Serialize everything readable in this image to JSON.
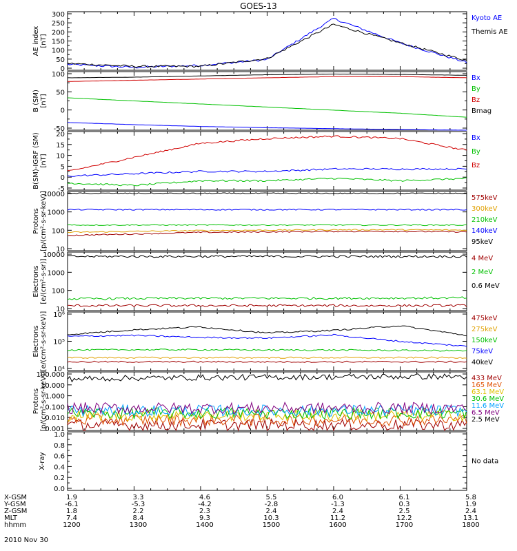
{
  "title": "GOES-13",
  "panels": [
    {
      "id": "ae",
      "ylabel": [
        "AE index",
        "[nT]"
      ],
      "yticks": [
        "300",
        "250",
        "200",
        "150",
        "100",
        "50",
        "0"
      ],
      "legend": [
        {
          "text": "Kyoto AE",
          "color": "#0000ff"
        },
        {
          "text": "Themis AE",
          "color": "#000000"
        }
      ]
    },
    {
      "id": "bsm",
      "ylabel": [
        "B (SM)",
        "[nT]"
      ],
      "yticks": [
        "100",
        "50",
        "0",
        "-50"
      ],
      "legend": [
        {
          "text": "Bx",
          "color": "#0000ff"
        },
        {
          "text": "By",
          "color": "#00c000"
        },
        {
          "text": "Bz",
          "color": "#d00000"
        },
        {
          "text": "Bmag",
          "color": "#000000"
        }
      ]
    },
    {
      "id": "bigrf",
      "ylabel": [
        "B(SM)-IGRF (SM)",
        "[nT]"
      ],
      "yticks": [
        "20",
        "15",
        "10",
        "5",
        "0",
        "-5"
      ],
      "legend": [
        {
          "text": "Bx",
          "color": "#0000ff"
        },
        {
          "text": "By",
          "color": "#00c000"
        },
        {
          "text": "Bz",
          "color": "#d00000"
        }
      ]
    },
    {
      "id": "protons1",
      "ylabel": [
        "Protons",
        "[p/(cm²-s-sr-keV)]"
      ],
      "yticks": [
        "10000",
        "1000",
        "100",
        "10"
      ],
      "legend": [
        {
          "text": "575keV",
          "color": "#a00000"
        },
        {
          "text": "300keV",
          "color": "#e0a000"
        },
        {
          "text": "210keV",
          "color": "#00c000"
        },
        {
          "text": "140keV",
          "color": "#0000ff"
        },
        {
          "text": "95keV",
          "color": "#000000"
        }
      ]
    },
    {
      "id": "electrons1",
      "ylabel": [
        "Electrons",
        "[e/(cm²-s-sr)]"
      ],
      "yticks": [
        "10000",
        "1000",
        "100",
        "10"
      ],
      "legend": [
        {
          "text": "4 MeV",
          "color": "#a00000"
        },
        {
          "text": "2 MeV",
          "color": "#00c000"
        },
        {
          "text": "0.6 MeV",
          "color": "#000000"
        }
      ]
    },
    {
      "id": "electrons2",
      "ylabel": [
        "Electrons",
        "[e/(cm²-s-sr-keV)]"
      ],
      "yticks": [
        "10⁶",
        "10⁵",
        "10⁴"
      ],
      "legend": [
        {
          "text": "475keV",
          "color": "#a00000"
        },
        {
          "text": "275keV",
          "color": "#e0a000"
        },
        {
          "text": "150keV",
          "color": "#00c000"
        },
        {
          "text": "75keV",
          "color": "#0000ff"
        },
        {
          "text": "40keV",
          "color": "#000000"
        }
      ]
    },
    {
      "id": "protons2",
      "ylabel": [
        "Protons",
        "[p/(cm²-s-sr-keV)]"
      ],
      "yticks": [
        "100.000",
        "10.000",
        "1.000",
        "0.100",
        "0.010",
        "0.001"
      ],
      "legend": [
        {
          "text": "433 MeV",
          "color": "#a00000"
        },
        {
          "text": "165 MeV",
          "color": "#e05000"
        },
        {
          "text": "63.1 MeV",
          "color": "#e0c000"
        },
        {
          "text": "30.6 MeV",
          "color": "#00c000"
        },
        {
          "text": "11.6 MeV",
          "color": "#00a0ff"
        },
        {
          "text": "6.5 MeV",
          "color": "#800080"
        },
        {
          "text": "2.5 MeV",
          "color": "#000000"
        }
      ]
    },
    {
      "id": "xray",
      "ylabel": [
        "X-ray"
      ],
      "yticks": [
        "1.0",
        "0.8",
        "0.6",
        "0.4",
        "0.2",
        "0.0"
      ],
      "legend": [
        {
          "text": "No data",
          "color": "#000000"
        }
      ]
    }
  ],
  "footer": {
    "rows": [
      {
        "label": "X-GSM",
        "values": [
          "1.9",
          "3.3",
          "4.6",
          "5.5",
          "6.0",
          "6.1",
          "5.8"
        ]
      },
      {
        "label": "Y-GSM",
        "values": [
          "-6.1",
          "-5.3",
          "-4.2",
          "-2.8",
          "-1.3",
          "0.3",
          "1.9"
        ]
      },
      {
        "label": "Z-GSM",
        "values": [
          "1.8",
          "2.2",
          "2.3",
          "2.4",
          "2.4",
          "2.5",
          "2.4"
        ]
      },
      {
        "label": "MLT",
        "values": [
          "7.4",
          "8.4",
          "9.3",
          "10.3",
          "11.2",
          "12.2",
          "13.1"
        ]
      },
      {
        "label": "hhmm",
        "values": [
          "1200",
          "1300",
          "1400",
          "1500",
          "1600",
          "1700",
          "1800"
        ]
      }
    ],
    "date": "2010 Nov 30"
  },
  "chart_data": [
    {
      "type": "line",
      "title": "GOES-13",
      "ylabel": "AE index [nT]",
      "ylim": [
        0,
        300
      ],
      "x": [
        "1200",
        "1300",
        "1400",
        "1500",
        "1600",
        "1700",
        "1800"
      ],
      "series": [
        {
          "name": "Kyoto AE",
          "color": "#0000ff",
          "values": [
            30,
            15,
            25,
            55,
            265,
            140,
            40
          ]
        },
        {
          "name": "Themis AE",
          "color": "#000000",
          "values": [
            35,
            20,
            20,
            60,
            235,
            140,
            50
          ]
        }
      ]
    },
    {
      "type": "line",
      "ylabel": "B (SM) [nT]",
      "ylim": [
        -60,
        130
      ],
      "x": [
        "1200",
        "1300",
        "1400",
        "1500",
        "1600",
        "1700",
        "1800"
      ],
      "series": [
        {
          "name": "Bx",
          "color": "#0000ff",
          "values": [
            -35,
            -42,
            -48,
            -52,
            -55,
            -58,
            -60
          ]
        },
        {
          "name": "By",
          "color": "#00c000",
          "values": [
            45,
            35,
            25,
            15,
            5,
            -5,
            -18
          ]
        },
        {
          "name": "Bz",
          "color": "#d00000",
          "values": [
            98,
            102,
            106,
            110,
            114,
            114,
            110
          ]
        },
        {
          "name": "Bmag",
          "color": "#000000",
          "values": [
            110,
            112,
            116,
            120,
            122,
            121,
            118
          ]
        }
      ]
    },
    {
      "type": "line",
      "ylabel": "B(SM)-IGRF (SM) [nT]",
      "ylim": [
        -5,
        20
      ],
      "x": [
        "1200",
        "1300",
        "1400",
        "1500",
        "1600",
        "1700",
        "1800"
      ],
      "series": [
        {
          "name": "Bx",
          "color": "#0000ff",
          "values": [
            1,
            2,
            3,
            3,
            4,
            4,
            4
          ]
        },
        {
          "name": "By",
          "color": "#00c000",
          "values": [
            -2,
            -3,
            -1,
            -1,
            0,
            -1,
            0
          ]
        },
        {
          "name": "Bz",
          "color": "#d00000",
          "values": [
            3,
            9,
            15,
            17,
            18,
            17,
            12
          ]
        }
      ]
    },
    {
      "type": "line",
      "ylabel": "Protons [p/(cm²-s-sr-keV)]",
      "ylim": [
        10,
        10000
      ],
      "scale": "log",
      "x": [
        "1200",
        "1300",
        "1400",
        "1500",
        "1600",
        "1700",
        "1800"
      ],
      "series": [
        {
          "name": "575keV",
          "color": "#a00000",
          "values": [
            60,
            70,
            85,
            90,
            95,
            95,
            90
          ]
        },
        {
          "name": "300keV",
          "color": "#e0a000",
          "values": [
            85,
            95,
            105,
            110,
            115,
            115,
            110
          ]
        },
        {
          "name": "210keV",
          "color": "#00c000",
          "values": [
            200,
            200,
            200,
            200,
            200,
            200,
            200
          ]
        },
        {
          "name": "140keV",
          "color": "#0000ff",
          "values": [
            1200,
            1200,
            1200,
            1200,
            1200,
            1200,
            1200
          ]
        },
        {
          "name": "95keV",
          "color": "#000000",
          "values": [
            8000,
            8000,
            8000,
            8000,
            8000,
            8000,
            8000
          ]
        }
      ]
    },
    {
      "type": "line",
      "ylabel": "Electrons [e/(cm²-s-sr)]",
      "ylim": [
        10,
        10000
      ],
      "scale": "log",
      "x": [
        "1200",
        "1300",
        "1400",
        "1500",
        "1600",
        "1700",
        "1800"
      ],
      "series": [
        {
          "name": "4 MeV",
          "color": "#a00000",
          "values": [
            18,
            18,
            18,
            18,
            18,
            18,
            18
          ]
        },
        {
          "name": "2 MeV",
          "color": "#00c000",
          "values": [
            40,
            42,
            43,
            43,
            43,
            44,
            45
          ]
        },
        {
          "name": "0.6 MeV",
          "color": "#000000",
          "values": [
            6000,
            6000,
            6000,
            6000,
            6000,
            6000,
            6000
          ]
        }
      ]
    },
    {
      "type": "line",
      "ylabel": "Electrons [e/(cm²-s-sr-keV)]",
      "ylim": [
        5000,
        1000000
      ],
      "scale": "log",
      "x": [
        "1200",
        "1300",
        "1400",
        "1500",
        "1600",
        "1700",
        "1800"
      ],
      "series": [
        {
          "name": "475keV",
          "color": "#a00000",
          "values": [
            11000,
            11000,
            11000,
            11000,
            11000,
            11000,
            11000
          ]
        },
        {
          "name": "275keV",
          "color": "#e0a000",
          "values": [
            16000,
            16000,
            16000,
            16000,
            16000,
            16000,
            16000
          ]
        },
        {
          "name": "150keV",
          "color": "#00c000",
          "values": [
            32000,
            33000,
            33000,
            32000,
            32000,
            31000,
            30000
          ]
        },
        {
          "name": "75keV",
          "color": "#0000ff",
          "values": [
            110000,
            120000,
            100000,
            95000,
            125000,
            70000,
            45000
          ]
        },
        {
          "name": "40keV",
          "color": "#000000",
          "values": [
            130000,
            200000,
            260000,
            150000,
            190000,
            290000,
            120000
          ]
        }
      ]
    },
    {
      "type": "line",
      "ylabel": "Protons [p/(cm²-s-sr-keV)]",
      "ylim": [
        0.001,
        100
      ],
      "scale": "log",
      "x": [
        "1200",
        "1300",
        "1400",
        "1500",
        "1600",
        "1700",
        "1800"
      ],
      "series": [
        {
          "name": "433 MeV",
          "color": "#a00000",
          "values": [
            0.003,
            0.003,
            0.003,
            0.003,
            0.003,
            0.003,
            0.003
          ]
        },
        {
          "name": "165 MeV",
          "color": "#e05000",
          "values": [
            0.008,
            0.008,
            0.008,
            0.008,
            0.008,
            0.008,
            0.008
          ]
        },
        {
          "name": "63.1 MeV",
          "color": "#e0c000",
          "values": [
            0.02,
            0.02,
            0.02,
            0.02,
            0.02,
            0.02,
            0.02
          ]
        },
        {
          "name": "30.6 MeV",
          "color": "#00c000",
          "values": [
            0.03,
            0.03,
            0.03,
            0.03,
            0.03,
            0.03,
            0.03
          ]
        },
        {
          "name": "11.6 MeV",
          "color": "#00a0ff",
          "values": [
            0.05,
            0.05,
            0.05,
            0.05,
            0.05,
            0.05,
            0.05
          ]
        },
        {
          "name": "6.5 MeV",
          "color": "#800080",
          "values": [
            0.08,
            0.08,
            0.08,
            0.08,
            0.08,
            0.08,
            0.08
          ]
        },
        {
          "name": "2.5 MeV",
          "color": "#000000",
          "values": [
            25,
            30,
            33,
            35,
            38,
            40,
            40
          ]
        }
      ]
    },
    {
      "type": "line",
      "ylabel": "X-ray",
      "ylim": [
        0,
        1
      ],
      "series": []
    }
  ]
}
